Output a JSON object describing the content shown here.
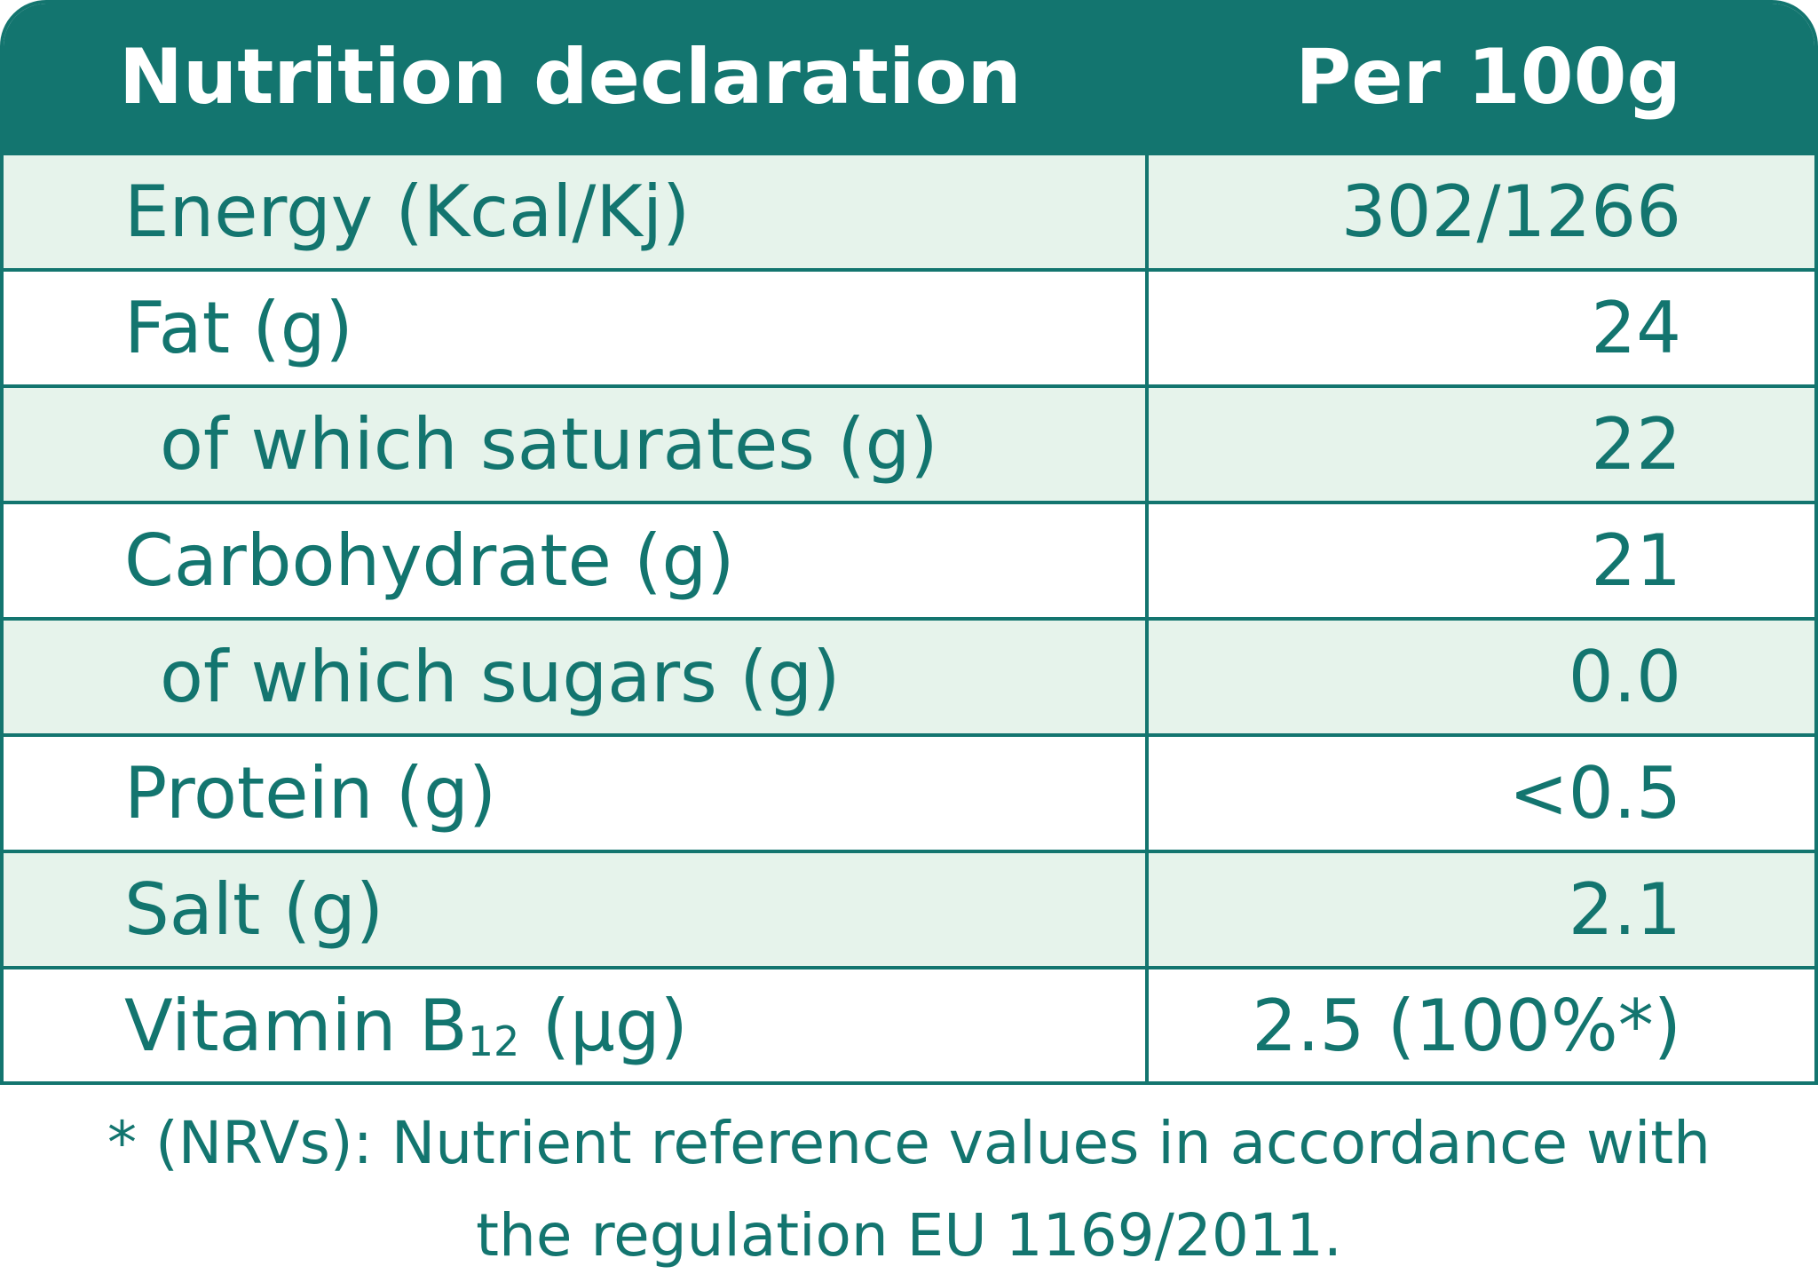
{
  "table": {
    "header": {
      "left": "Nutrition declaration",
      "right": "Per 100g"
    },
    "rows": [
      {
        "label": "Energy (Kcal/Kj)",
        "value": "302/1266",
        "indent": false
      },
      {
        "label": "Fat (g)",
        "value": "24",
        "indent": false
      },
      {
        "label": "of which saturates (g)",
        "value": "22",
        "indent": true
      },
      {
        "label": "Carbohydrate (g)",
        "value": "21",
        "indent": false
      },
      {
        "label": "of which sugars (g)",
        "value": "0.0",
        "indent": true
      },
      {
        "label": "Protein (g)",
        "value": "<0.5",
        "indent": false
      },
      {
        "label": "Salt (g)",
        "value": "2.1",
        "indent": false
      },
      {
        "label_main": "Vitamin B",
        "label_sub": "12",
        "label_unit": " (µg)",
        "value": "2.5 (100%*)",
        "indent": false
      }
    ]
  },
  "footnote": {
    "line1": "* (NRVs): Nutrient reference values in accordance with",
    "line2": "the regulation EU 1169/2011."
  },
  "colors": {
    "brand_teal": "#13756f",
    "row_shade": "#e6f3eb",
    "header_text": "#ffffff"
  }
}
